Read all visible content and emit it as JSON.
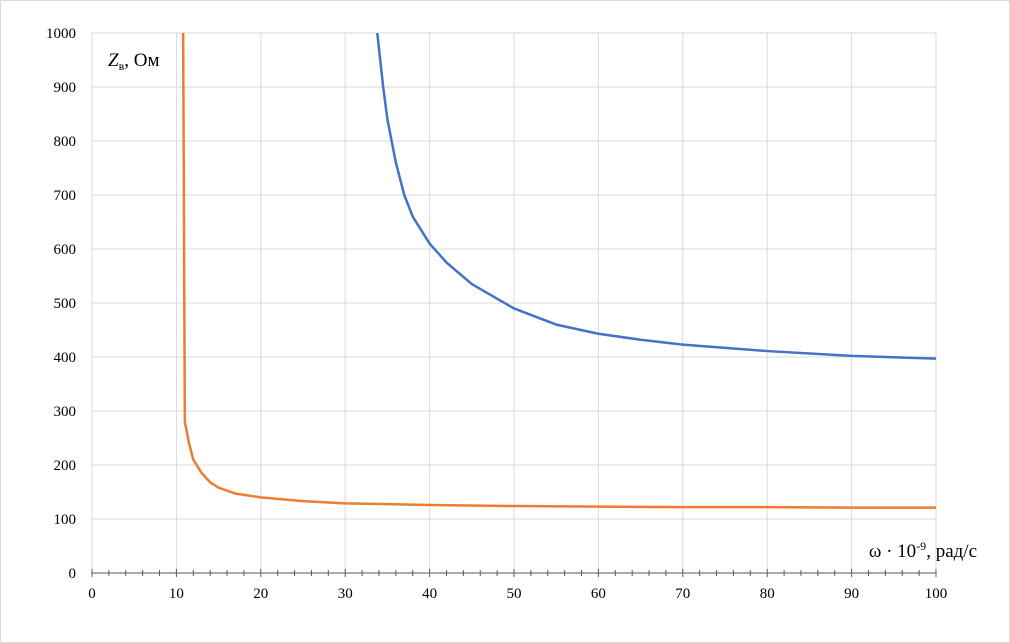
{
  "chart_data": {
    "type": "line",
    "y_label": {
      "main": "Z",
      "sub": "в",
      "rest": ", Ом"
    },
    "x_label": {
      "main": "ω · 10",
      "sup": "-9",
      "rest": ", рад/с"
    },
    "xlim": [
      0,
      100
    ],
    "xticks": [
      0,
      10,
      20,
      30,
      40,
      50,
      60,
      70,
      80,
      90,
      100
    ],
    "xminorticks": [
      2,
      4,
      6,
      8,
      12,
      14,
      16,
      18,
      22,
      24,
      26,
      28,
      32,
      34,
      36,
      38,
      42,
      44,
      46,
      48,
      52,
      54,
      56,
      58,
      62,
      64,
      66,
      68,
      72,
      74,
      76,
      78,
      82,
      84,
      86,
      88,
      92,
      94,
      96,
      98
    ],
    "ylim": [
      0,
      1000
    ],
    "yticks": [
      0,
      100,
      200,
      300,
      400,
      500,
      600,
      700,
      800,
      900,
      1000
    ],
    "grid": true,
    "series": [
      {
        "color": "#4472c4",
        "x": [
          33.8,
          34.5,
          35,
          36,
          37,
          38,
          40,
          42,
          45,
          50,
          55,
          60,
          65,
          70,
          80,
          90,
          100
        ],
        "values": [
          1000,
          900,
          840,
          760,
          700,
          660,
          610,
          575,
          535,
          490,
          460,
          443,
          432,
          423,
          411,
          402,
          397
        ]
      },
      {
        "color": "#ed7d31",
        "x": [
          10.8,
          11,
          11.5,
          12,
          13,
          14,
          15,
          17,
          20,
          25,
          30,
          40,
          50,
          60,
          70,
          80,
          90,
          100
        ],
        "values": [
          1000,
          280,
          240,
          210,
          185,
          168,
          158,
          147,
          140,
          133,
          129,
          126,
          124,
          123,
          122,
          122,
          121,
          121
        ]
      }
    ]
  }
}
